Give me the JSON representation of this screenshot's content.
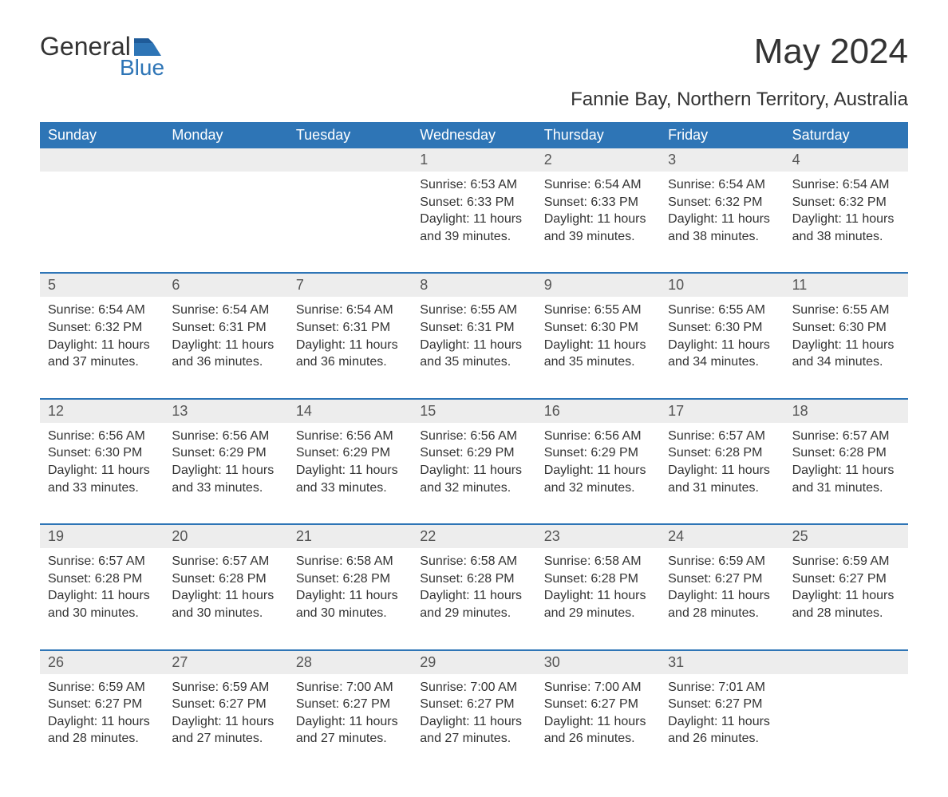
{
  "logo": {
    "text1": "General",
    "text2": "Blue"
  },
  "title": "May 2024",
  "subtitle": "Fannie Bay, Northern Territory, Australia",
  "colors": {
    "header_bg": "#2e75b6",
    "header_text": "#ffffff",
    "daynum_bg": "#ededed",
    "text": "#333333",
    "logo_blue": "#2e75b6",
    "border": "#2e75b6",
    "background": "#ffffff"
  },
  "fontsizes": {
    "title": 44,
    "subtitle": 24,
    "header": 18,
    "daynum": 18,
    "body": 16
  },
  "layout": {
    "columns": 7,
    "rows": 5,
    "first_day_column": 3
  },
  "day_names": [
    "Sunday",
    "Monday",
    "Tuesday",
    "Wednesday",
    "Thursday",
    "Friday",
    "Saturday"
  ],
  "days": [
    {
      "n": 1,
      "sunrise": "6:53 AM",
      "sunset": "6:33 PM",
      "dl_h": 11,
      "dl_m": 39
    },
    {
      "n": 2,
      "sunrise": "6:54 AM",
      "sunset": "6:33 PM",
      "dl_h": 11,
      "dl_m": 39
    },
    {
      "n": 3,
      "sunrise": "6:54 AM",
      "sunset": "6:32 PM",
      "dl_h": 11,
      "dl_m": 38
    },
    {
      "n": 4,
      "sunrise": "6:54 AM",
      "sunset": "6:32 PM",
      "dl_h": 11,
      "dl_m": 38
    },
    {
      "n": 5,
      "sunrise": "6:54 AM",
      "sunset": "6:32 PM",
      "dl_h": 11,
      "dl_m": 37
    },
    {
      "n": 6,
      "sunrise": "6:54 AM",
      "sunset": "6:31 PM",
      "dl_h": 11,
      "dl_m": 36
    },
    {
      "n": 7,
      "sunrise": "6:54 AM",
      "sunset": "6:31 PM",
      "dl_h": 11,
      "dl_m": 36
    },
    {
      "n": 8,
      "sunrise": "6:55 AM",
      "sunset": "6:31 PM",
      "dl_h": 11,
      "dl_m": 35
    },
    {
      "n": 9,
      "sunrise": "6:55 AM",
      "sunset": "6:30 PM",
      "dl_h": 11,
      "dl_m": 35
    },
    {
      "n": 10,
      "sunrise": "6:55 AM",
      "sunset": "6:30 PM",
      "dl_h": 11,
      "dl_m": 34
    },
    {
      "n": 11,
      "sunrise": "6:55 AM",
      "sunset": "6:30 PM",
      "dl_h": 11,
      "dl_m": 34
    },
    {
      "n": 12,
      "sunrise": "6:56 AM",
      "sunset": "6:30 PM",
      "dl_h": 11,
      "dl_m": 33
    },
    {
      "n": 13,
      "sunrise": "6:56 AM",
      "sunset": "6:29 PM",
      "dl_h": 11,
      "dl_m": 33
    },
    {
      "n": 14,
      "sunrise": "6:56 AM",
      "sunset": "6:29 PM",
      "dl_h": 11,
      "dl_m": 33
    },
    {
      "n": 15,
      "sunrise": "6:56 AM",
      "sunset": "6:29 PM",
      "dl_h": 11,
      "dl_m": 32
    },
    {
      "n": 16,
      "sunrise": "6:56 AM",
      "sunset": "6:29 PM",
      "dl_h": 11,
      "dl_m": 32
    },
    {
      "n": 17,
      "sunrise": "6:57 AM",
      "sunset": "6:28 PM",
      "dl_h": 11,
      "dl_m": 31
    },
    {
      "n": 18,
      "sunrise": "6:57 AM",
      "sunset": "6:28 PM",
      "dl_h": 11,
      "dl_m": 31
    },
    {
      "n": 19,
      "sunrise": "6:57 AM",
      "sunset": "6:28 PM",
      "dl_h": 11,
      "dl_m": 30
    },
    {
      "n": 20,
      "sunrise": "6:57 AM",
      "sunset": "6:28 PM",
      "dl_h": 11,
      "dl_m": 30
    },
    {
      "n": 21,
      "sunrise": "6:58 AM",
      "sunset": "6:28 PM",
      "dl_h": 11,
      "dl_m": 30
    },
    {
      "n": 22,
      "sunrise": "6:58 AM",
      "sunset": "6:28 PM",
      "dl_h": 11,
      "dl_m": 29
    },
    {
      "n": 23,
      "sunrise": "6:58 AM",
      "sunset": "6:28 PM",
      "dl_h": 11,
      "dl_m": 29
    },
    {
      "n": 24,
      "sunrise": "6:59 AM",
      "sunset": "6:27 PM",
      "dl_h": 11,
      "dl_m": 28
    },
    {
      "n": 25,
      "sunrise": "6:59 AM",
      "sunset": "6:27 PM",
      "dl_h": 11,
      "dl_m": 28
    },
    {
      "n": 26,
      "sunrise": "6:59 AM",
      "sunset": "6:27 PM",
      "dl_h": 11,
      "dl_m": 28
    },
    {
      "n": 27,
      "sunrise": "6:59 AM",
      "sunset": "6:27 PM",
      "dl_h": 11,
      "dl_m": 27
    },
    {
      "n": 28,
      "sunrise": "7:00 AM",
      "sunset": "6:27 PM",
      "dl_h": 11,
      "dl_m": 27
    },
    {
      "n": 29,
      "sunrise": "7:00 AM",
      "sunset": "6:27 PM",
      "dl_h": 11,
      "dl_m": 27
    },
    {
      "n": 30,
      "sunrise": "7:00 AM",
      "sunset": "6:27 PM",
      "dl_h": 11,
      "dl_m": 26
    },
    {
      "n": 31,
      "sunrise": "7:01 AM",
      "sunset": "6:27 PM",
      "dl_h": 11,
      "dl_m": 26
    }
  ],
  "labels": {
    "sunrise": "Sunrise:",
    "sunset": "Sunset:",
    "daylight": "Daylight:",
    "hours": "hours",
    "and": "and",
    "minutes": "minutes."
  }
}
